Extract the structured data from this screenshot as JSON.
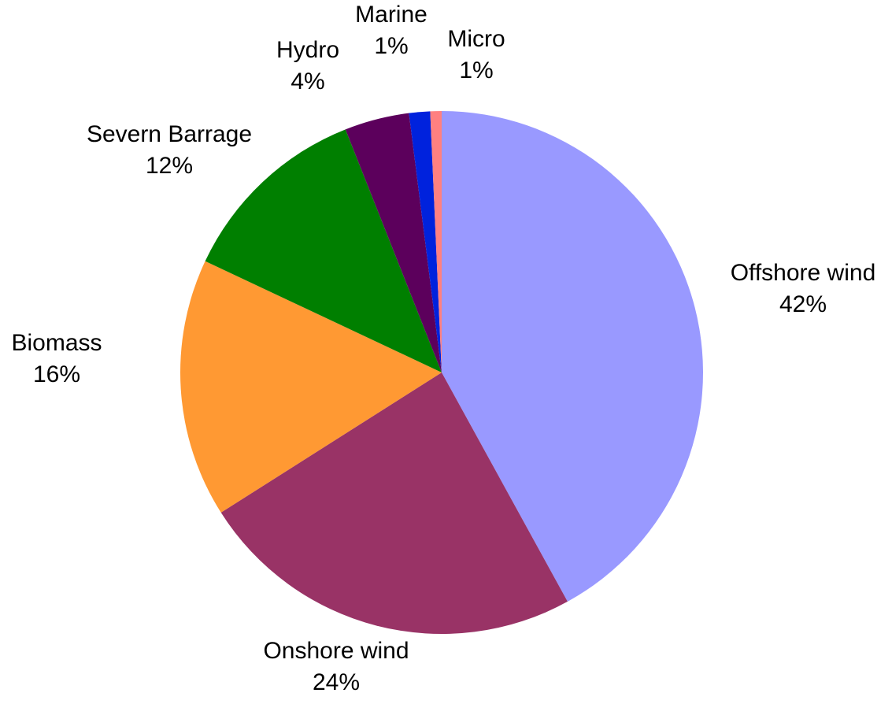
{
  "chart_data": {
    "type": "pie",
    "title": "",
    "slices": [
      {
        "label": "Offshore wind",
        "value": 42,
        "value_label": "42%",
        "color": "#9999ff"
      },
      {
        "label": "Onshore wind",
        "value": 24,
        "value_label": "24%",
        "color": "#993366"
      },
      {
        "label": "Biomass",
        "value": 16,
        "value_label": "16%",
        "color": "#ff9933"
      },
      {
        "label": "Severn Barrage",
        "value": 12,
        "value_label": "12%",
        "color": "#007f00"
      },
      {
        "label": "Hydro",
        "value": 4,
        "value_label": "4%",
        "color": "#5c005c"
      },
      {
        "label": "Marine",
        "value": 1.3,
        "value_label": "1%",
        "color": "#0022dd"
      },
      {
        "label": "Micro",
        "value": 0.7,
        "value_label": "1%",
        "color": "#ff8080"
      }
    ],
    "start_angle": "12 o'clock",
    "direction": "clockwise",
    "legend": "none",
    "data_labels": "outside"
  }
}
